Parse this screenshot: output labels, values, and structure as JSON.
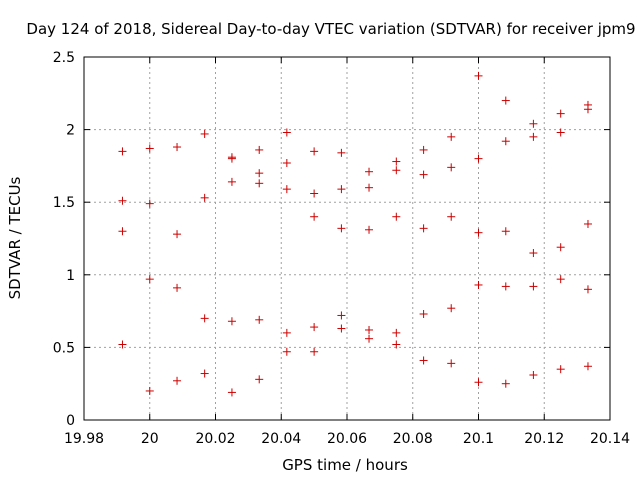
{
  "chart_data": {
    "type": "scatter",
    "title": "Day 124 of 2018, Sidereal Day-to-day VTEC variation (SDTVAR) for receiver jpm9",
    "xlabel": "GPS time / hours",
    "ylabel": "SDTVAR / TECUs",
    "xlim": [
      19.98,
      20.14
    ],
    "ylim": [
      0,
      2.5
    ],
    "xticks": [
      19.98,
      20.0,
      20.02,
      20.04,
      20.06,
      20.08,
      20.1,
      20.12,
      20.14
    ],
    "xtick_labels": [
      "19.98",
      "20",
      "20.02",
      "20.04",
      "20.06",
      "20.08",
      "20.1",
      "20.12",
      "20.14"
    ],
    "yticks": [
      0,
      0.5,
      1,
      1.5,
      2,
      2.5
    ],
    "ytick_labels": [
      "0",
      "0.5",
      "1",
      "1.5",
      "2",
      "2.5"
    ],
    "grid": true,
    "series": [
      {
        "name": "SDTVAR",
        "color": "#cc0000",
        "marker": "+",
        "points": [
          [
            19.9917,
            1.85
          ],
          [
            19.9917,
            1.51
          ],
          [
            19.9917,
            1.3
          ],
          [
            19.9917,
            0.52
          ],
          [
            20.0,
            1.87
          ],
          [
            20.0,
            1.49
          ],
          [
            20.0,
            0.97
          ],
          [
            20.0,
            0.2
          ],
          [
            20.0083,
            1.88
          ],
          [
            20.0083,
            1.28
          ],
          [
            20.0083,
            0.91
          ],
          [
            20.0083,
            0.27
          ],
          [
            20.0167,
            1.97
          ],
          [
            20.0167,
            1.53
          ],
          [
            20.0167,
            0.7
          ],
          [
            20.0167,
            0.32
          ],
          [
            20.025,
            1.81
          ],
          [
            20.025,
            1.8
          ],
          [
            20.025,
            1.64
          ],
          [
            20.025,
            0.68
          ],
          [
            20.025,
            0.19
          ],
          [
            20.0333,
            1.86
          ],
          [
            20.0333,
            1.7
          ],
          [
            20.0333,
            1.63
          ],
          [
            20.0333,
            0.69
          ],
          [
            20.0333,
            0.28
          ],
          [
            20.0417,
            1.98
          ],
          [
            20.0417,
            1.77
          ],
          [
            20.0417,
            1.59
          ],
          [
            20.0417,
            0.6
          ],
          [
            20.0417,
            0.47
          ],
          [
            20.05,
            1.85
          ],
          [
            20.05,
            1.56
          ],
          [
            20.05,
            1.4
          ],
          [
            20.05,
            0.64
          ],
          [
            20.05,
            0.47
          ],
          [
            20.0583,
            1.84
          ],
          [
            20.0583,
            1.59
          ],
          [
            20.0583,
            1.32
          ],
          [
            20.0583,
            0.72
          ],
          [
            20.0583,
            0.63
          ],
          [
            20.0667,
            1.71
          ],
          [
            20.0667,
            1.6
          ],
          [
            20.0667,
            1.31
          ],
          [
            20.0667,
            0.62
          ],
          [
            20.0667,
            0.56
          ],
          [
            20.075,
            1.78
          ],
          [
            20.075,
            1.72
          ],
          [
            20.075,
            1.4
          ],
          [
            20.075,
            0.6
          ],
          [
            20.075,
            0.52
          ],
          [
            20.0833,
            1.86
          ],
          [
            20.0833,
            1.69
          ],
          [
            20.0833,
            1.32
          ],
          [
            20.0833,
            0.73
          ],
          [
            20.0833,
            0.41
          ],
          [
            20.0917,
            1.95
          ],
          [
            20.0917,
            1.74
          ],
          [
            20.0917,
            1.4
          ],
          [
            20.0917,
            0.77
          ],
          [
            20.0917,
            0.39
          ],
          [
            20.1,
            2.37
          ],
          [
            20.1,
            1.8
          ],
          [
            20.1,
            1.29
          ],
          [
            20.1,
            0.93
          ],
          [
            20.1,
            0.26
          ],
          [
            20.1083,
            2.2
          ],
          [
            20.1083,
            1.92
          ],
          [
            20.1083,
            1.3
          ],
          [
            20.1083,
            0.92
          ],
          [
            20.1083,
            0.25
          ],
          [
            20.1167,
            2.04
          ],
          [
            20.1167,
            1.95
          ],
          [
            20.1167,
            1.15
          ],
          [
            20.1167,
            0.92
          ],
          [
            20.1167,
            0.31
          ],
          [
            20.125,
            2.11
          ],
          [
            20.125,
            1.98
          ],
          [
            20.125,
            1.19
          ],
          [
            20.125,
            0.97
          ],
          [
            20.125,
            0.35
          ],
          [
            20.1333,
            2.17
          ],
          [
            20.1333,
            2.14
          ],
          [
            20.1333,
            1.35
          ],
          [
            20.1333,
            0.9
          ],
          [
            20.1333,
            0.37
          ]
        ]
      }
    ]
  }
}
